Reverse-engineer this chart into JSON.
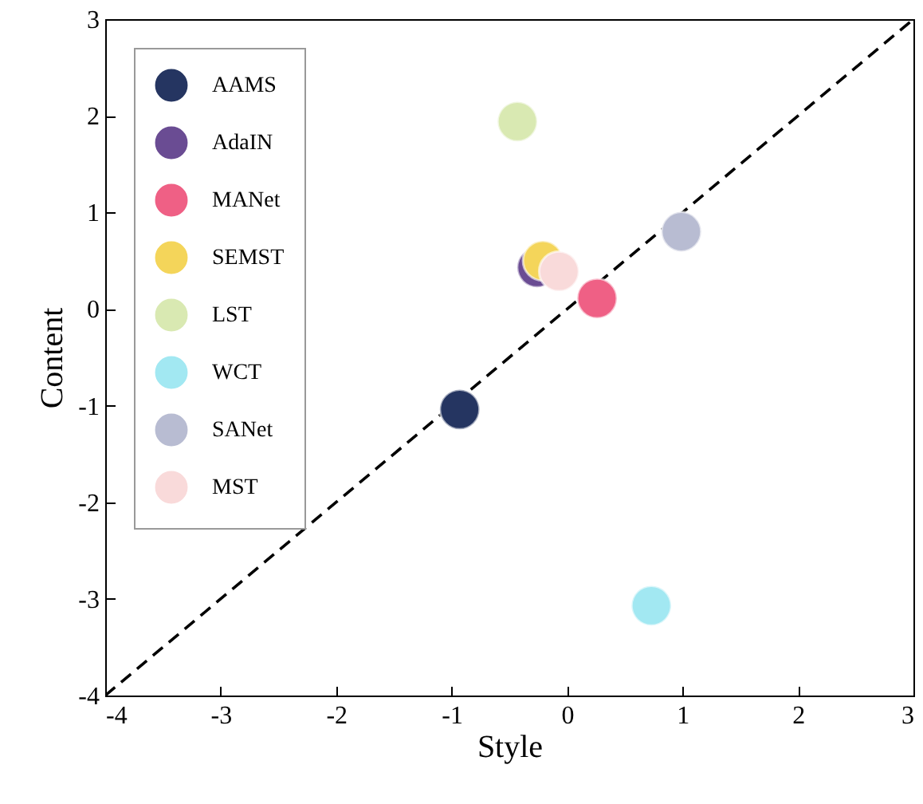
{
  "chart_data": {
    "type": "scatter",
    "xlabel": "Style",
    "ylabel": "Content",
    "xlim": [
      -4,
      3
    ],
    "ylim": [
      -4,
      3
    ],
    "xticks": [
      -4,
      -3,
      -2,
      -1,
      0,
      1,
      2,
      3
    ],
    "yticks": [
      -4,
      -3,
      -2,
      -1,
      0,
      1,
      2,
      3
    ],
    "grid": false,
    "legend": "top left",
    "marker": "circle",
    "series": [
      {
        "type": "line",
        "color": "#000000",
        "line_style": "dashed",
        "marker": "none",
        "x": [
          -4,
          3
        ],
        "values": [
          -4,
          3
        ]
      },
      {
        "name": "AAMS",
        "color": "#253561",
        "x": [
          -0.93
        ],
        "values": [
          -1.04
        ]
      },
      {
        "name": "AdaIN",
        "color": "#6a4c93",
        "x": [
          -0.26
        ],
        "values": [
          0.43
        ]
      },
      {
        "name": "MANet",
        "color": "#ef6085",
        "x": [
          0.26
        ],
        "values": [
          0.11
        ]
      },
      {
        "name": "SEMST",
        "color": "#f4d55a",
        "x": [
          -0.21
        ],
        "values": [
          0.5
        ]
      },
      {
        "name": "LST",
        "color": "#d9e9b2",
        "x": [
          -0.43
        ],
        "values": [
          1.94
        ]
      },
      {
        "name": "WCT",
        "color": "#a2e8f2",
        "x": [
          0.73
        ],
        "values": [
          -3.07
        ]
      },
      {
        "name": "SANet",
        "color": "#b8bcd2",
        "x": [
          0.99
        ],
        "values": [
          0.8
        ]
      },
      {
        "name": "MST",
        "color": "#f9dada",
        "x": [
          -0.07
        ],
        "values": [
          0.39
        ]
      }
    ]
  }
}
